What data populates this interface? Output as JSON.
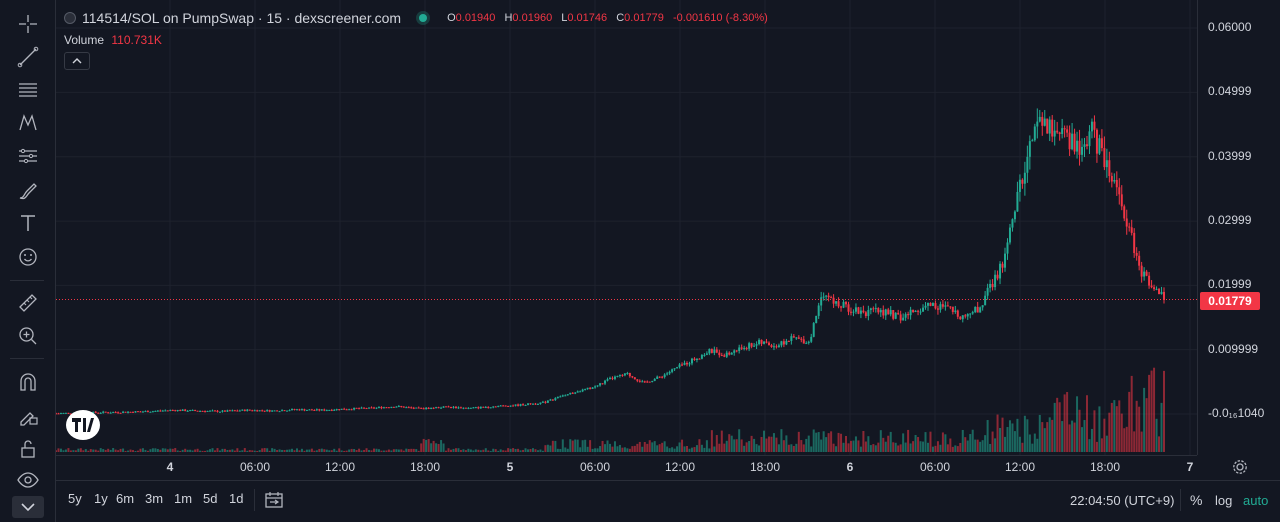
{
  "header": {
    "symbol": "114514/SOL on PumpSwap · 15 · dexscreener.com",
    "ohlc": {
      "o_label": "O",
      "o_value": "0.01940",
      "h_label": "H",
      "h_value": "0.01960",
      "l_label": "L",
      "l_value": "0.01746",
      "c_label": "C",
      "c_value": "0.01779",
      "change": "-0.001610 (-8.30%)"
    },
    "volume_label": "Volume",
    "volume_value": "110.731K"
  },
  "colors": {
    "up": "#22ab94",
    "down": "#f23645",
    "bg": "#131722",
    "grid": "#1e222d"
  },
  "price_axis": {
    "labels": [
      "0.06000",
      "0.04999",
      "0.03999",
      "0.02999",
      "0.01999",
      "0.009999",
      "-0.0₁₆1040"
    ],
    "last_price": "0.01779"
  },
  "time_axis": {
    "labels": [
      "4",
      "06:00",
      "12:00",
      "18:00",
      "5",
      "06:00",
      "12:00",
      "18:00",
      "6",
      "06:00",
      "12:00",
      "18:00",
      "7"
    ]
  },
  "bottom_bar": {
    "ranges": [
      "5y",
      "1y",
      "6m",
      "3m",
      "1m",
      "5d",
      "1d"
    ],
    "clock": "22:04:50 (UTC+9)",
    "percent": "%",
    "log": "log",
    "auto": "auto"
  },
  "chart_data": {
    "type": "candlestick",
    "ylim": [
      -0.0001,
      0.06
    ],
    "y_ticks": [
      0.06,
      0.04999,
      0.03999,
      0.02999,
      0.01999,
      0.009999
    ],
    "last_price": 0.01779,
    "grid": true,
    "series_close": [
      [
        0,
        0.0001
      ],
      [
        40,
        0.0002
      ],
      [
        80,
        0.0003
      ],
      [
        110,
        0.0004
      ],
      [
        140,
        0.0006
      ],
      [
        170,
        0.0005
      ],
      [
        200,
        0.0004
      ],
      [
        230,
        0.0006
      ],
      [
        260,
        0.0005
      ],
      [
        290,
        0.0007
      ],
      [
        320,
        0.0006
      ],
      [
        350,
        0.0008
      ],
      [
        380,
        0.0009
      ],
      [
        410,
        0.0012
      ],
      [
        440,
        0.0008
      ],
      [
        470,
        0.0011
      ],
      [
        500,
        0.0009
      ],
      [
        530,
        0.0012
      ],
      [
        560,
        0.0014
      ],
      [
        590,
        0.0018
      ],
      [
        610,
        0.0028
      ],
      [
        630,
        0.0035
      ],
      [
        650,
        0.0042
      ],
      [
        670,
        0.0055
      ],
      [
        690,
        0.0062
      ],
      [
        710,
        0.0048
      ],
      [
        730,
        0.0058
      ],
      [
        750,
        0.0072
      ],
      [
        770,
        0.0085
      ],
      [
        790,
        0.0098
      ],
      [
        810,
        0.0092
      ],
      [
        830,
        0.0104
      ],
      [
        850,
        0.0111
      ],
      [
        870,
        0.0106
      ],
      [
        890,
        0.0118
      ],
      [
        910,
        0.0112
      ],
      [
        925,
        0.0192
      ],
      [
        940,
        0.0172
      ],
      [
        960,
        0.0164
      ],
      [
        980,
        0.0158
      ],
      [
        1000,
        0.016
      ],
      [
        1020,
        0.0148
      ],
      [
        1035,
        0.0159
      ],
      [
        1055,
        0.0171
      ],
      [
        1075,
        0.0164
      ],
      [
        1095,
        0.0152
      ],
      [
        1115,
        0.0165
      ],
      [
        1130,
        0.02
      ],
      [
        1145,
        0.024
      ],
      [
        1160,
        0.033
      ],
      [
        1175,
        0.042
      ],
      [
        1190,
        0.0455
      ],
      [
        1205,
        0.044
      ],
      [
        1220,
        0.043
      ],
      [
        1235,
        0.0408
      ],
      [
        1250,
        0.044
      ],
      [
        1265,
        0.04
      ],
      [
        1280,
        0.036
      ],
      [
        1295,
        0.029
      ],
      [
        1310,
        0.022
      ],
      [
        1325,
        0.02
      ],
      [
        1340,
        0.0178
      ]
    ]
  }
}
